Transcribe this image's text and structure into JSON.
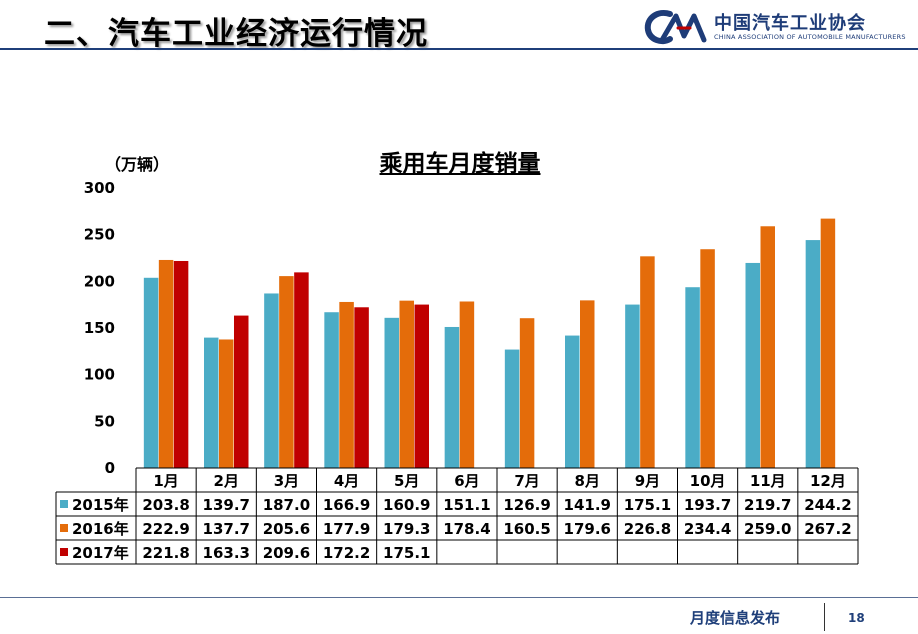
{
  "slide": {
    "title": "二、汽车工业经济运行情况",
    "logo_cn": "中国汽车工业协会",
    "logo_en": "CHINA ASSOCIATION OF AUTOMOBILE MANUFACTURERS",
    "footer": "月度信息发布",
    "page_number": "18"
  },
  "chart_data": {
    "type": "bar",
    "title": "乘用车月度销量",
    "ylabel": "（万辆）",
    "xlabel": "",
    "ylim": [
      0,
      300
    ],
    "yticks": [
      0,
      50,
      100,
      150,
      200,
      250,
      300
    ],
    "grid": false,
    "legend": "data-table-below",
    "categories": [
      "1月",
      "2月",
      "3月",
      "4月",
      "5月",
      "6月",
      "7月",
      "8月",
      "9月",
      "10月",
      "11月",
      "12月"
    ],
    "series": [
      {
        "name": "2015年",
        "color": "#4bacc6",
        "values": [
          203.8,
          139.7,
          187.0,
          166.9,
          160.9,
          151.1,
          126.9,
          141.9,
          175.1,
          193.7,
          219.7,
          244.2
        ]
      },
      {
        "name": "2016年",
        "color": "#e46c0a",
        "values": [
          222.9,
          137.7,
          205.6,
          177.9,
          179.3,
          178.4,
          160.5,
          179.6,
          226.8,
          234.4,
          259.0,
          267.2
        ]
      },
      {
        "name": "2017年",
        "color": "#c00000",
        "values": [
          221.8,
          163.3,
          209.6,
          172.2,
          175.1,
          null,
          null,
          null,
          null,
          null,
          null,
          null
        ]
      }
    ]
  }
}
